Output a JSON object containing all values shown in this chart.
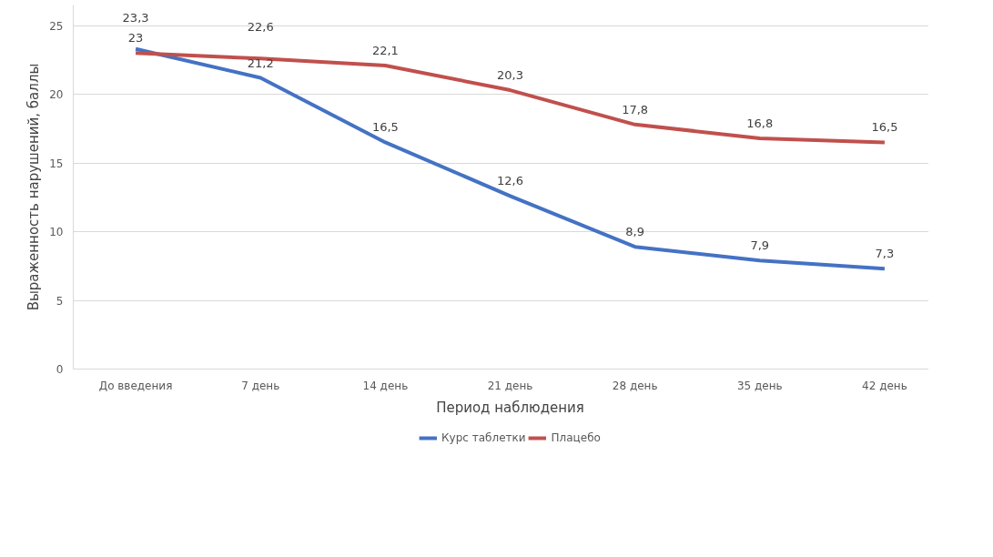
{
  "chart_data": {
    "type": "line",
    "xlabel": "Период наблюдения",
    "ylabel": "Выраженность нарушений, баллы",
    "categories": [
      "До введения",
      "7 день",
      "14 день",
      "21 день",
      "28 день",
      "35 день",
      "42 день"
    ],
    "series": [
      {
        "name": "Курс таблетки",
        "color": "#4472c4",
        "values": [
          23.3,
          21.2,
          16.5,
          12.6,
          8.9,
          7.9,
          7.3
        ],
        "value_labels": [
          "23,3",
          "21,2",
          "16,5",
          "12,6",
          "8,9",
          "7,9",
          "7,3"
        ]
      },
      {
        "name": "Плацебо",
        "color": "#c0504d",
        "values": [
          23,
          22.6,
          22.1,
          20.3,
          17.8,
          16.8,
          16.5
        ],
        "value_labels": [
          "23",
          "22,6",
          "22,1",
          "20,3",
          "17,8",
          "16,8",
          "16,5"
        ]
      }
    ],
    "ylim": [
      0,
      26.5
    ],
    "yticks": [
      0,
      5,
      10,
      15,
      20,
      25
    ],
    "grid": "y",
    "legend": "bottom",
    "marker": "none",
    "line_style": "solid"
  }
}
